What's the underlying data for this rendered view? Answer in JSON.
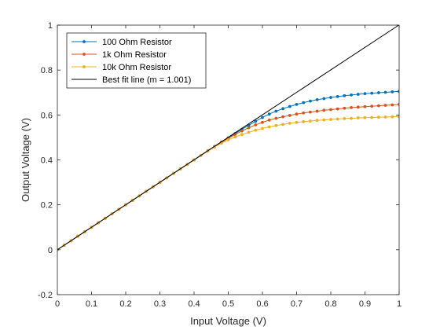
{
  "chart_data": {
    "type": "line",
    "xlabel": "Input Voltage (V)",
    "ylabel": "Output Voltage (V)",
    "xlim": [
      0,
      1
    ],
    "ylim": [
      -0.2,
      1
    ],
    "xticks": [
      "0",
      "0.1",
      "0.2",
      "0.3",
      "0.4",
      "0.5",
      "0.6",
      "0.7",
      "0.8",
      "0.9",
      "1"
    ],
    "yticks": [
      "-0.2",
      "0",
      "0.2",
      "0.4",
      "0.6",
      "0.8",
      "1"
    ],
    "grid": false,
    "legend_position": "top-left",
    "x": [
      0.0,
      0.02,
      0.04,
      0.06,
      0.08,
      0.1,
      0.12,
      0.14,
      0.16,
      0.18,
      0.2,
      0.22,
      0.24,
      0.26,
      0.28,
      0.3,
      0.32,
      0.34,
      0.36,
      0.38,
      0.4,
      0.42,
      0.44,
      0.46,
      0.48,
      0.5,
      0.52,
      0.54,
      0.56,
      0.58,
      0.6,
      0.62,
      0.64,
      0.66,
      0.68,
      0.7,
      0.72,
      0.74,
      0.76,
      0.78,
      0.8,
      0.82,
      0.84,
      0.86,
      0.88,
      0.9,
      0.92,
      0.94,
      0.96,
      0.98,
      1.0
    ],
    "series": [
      {
        "name": "100 Ohm Resistor",
        "color": "#0072BD",
        "marker": "dot",
        "values": [
          0.0,
          0.02,
          0.04,
          0.06,
          0.08,
          0.1,
          0.12,
          0.14,
          0.16,
          0.18,
          0.2,
          0.22,
          0.24,
          0.26,
          0.28,
          0.3,
          0.32,
          0.34,
          0.36,
          0.38,
          0.4,
          0.42,
          0.44,
          0.46,
          0.479,
          0.498,
          0.517,
          0.536,
          0.554,
          0.572,
          0.589,
          0.604,
          0.617,
          0.628,
          0.638,
          0.647,
          0.655,
          0.662,
          0.668,
          0.673,
          0.678,
          0.682,
          0.686,
          0.689,
          0.692,
          0.695,
          0.697,
          0.699,
          0.701,
          0.703,
          0.705
        ]
      },
      {
        "name": "1k Ohm Resistor",
        "color": "#D95319",
        "marker": "dot",
        "values": [
          0.0,
          0.02,
          0.04,
          0.06,
          0.08,
          0.1,
          0.12,
          0.14,
          0.16,
          0.18,
          0.2,
          0.22,
          0.24,
          0.26,
          0.28,
          0.3,
          0.32,
          0.34,
          0.36,
          0.38,
          0.4,
          0.42,
          0.44,
          0.459,
          0.478,
          0.496,
          0.513,
          0.529,
          0.543,
          0.556,
          0.567,
          0.577,
          0.585,
          0.592,
          0.598,
          0.604,
          0.609,
          0.613,
          0.617,
          0.621,
          0.624,
          0.627,
          0.63,
          0.633,
          0.635,
          0.637,
          0.639,
          0.641,
          0.643,
          0.645,
          0.647
        ]
      },
      {
        "name": "10k Ohm Resistor",
        "color": "#EDB120",
        "marker": "dot",
        "values": [
          0.0,
          0.02,
          0.04,
          0.06,
          0.08,
          0.1,
          0.12,
          0.14,
          0.16,
          0.18,
          0.2,
          0.22,
          0.24,
          0.26,
          0.28,
          0.3,
          0.32,
          0.34,
          0.36,
          0.38,
          0.4,
          0.42,
          0.439,
          0.457,
          0.474,
          0.489,
          0.502,
          0.513,
          0.523,
          0.532,
          0.54,
          0.547,
          0.553,
          0.558,
          0.563,
          0.567,
          0.57,
          0.573,
          0.576,
          0.578,
          0.58,
          0.582,
          0.584,
          0.585,
          0.587,
          0.588,
          0.589,
          0.59,
          0.591,
          0.592,
          0.593
        ]
      },
      {
        "name": "Best fit line (m = 1.001)",
        "color": "#000000",
        "marker": "none",
        "x": [
          0,
          1
        ],
        "values": [
          0.0,
          1.001
        ]
      }
    ]
  }
}
